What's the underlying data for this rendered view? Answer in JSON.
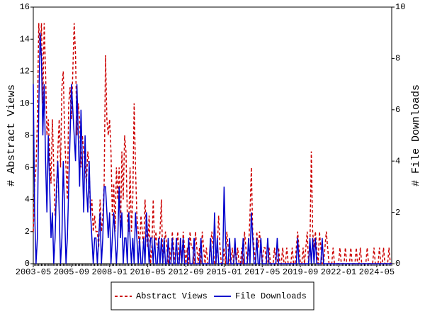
{
  "chart_data": {
    "type": "line",
    "y_label": "# Abstract Views",
    "y2_label": "# File Downloads",
    "categories": [
      "2003-05",
      null,
      null,
      null,
      null,
      null,
      null,
      null,
      null,
      null,
      null,
      null,
      null,
      null,
      null,
      null,
      null,
      null,
      null,
      null,
      null,
      null,
      null,
      null,
      null,
      null,
      null,
      null,
      "2005-09",
      null,
      null,
      null,
      null,
      null,
      null,
      null,
      null,
      null,
      null,
      null,
      null,
      null,
      null,
      null,
      null,
      null,
      null,
      null,
      null,
      null,
      null,
      null,
      null,
      null,
      null,
      null,
      "2008-01",
      null,
      null,
      null,
      null,
      null,
      null,
      null,
      null,
      null,
      null,
      null,
      null,
      null,
      null,
      null,
      null,
      null,
      null,
      null,
      null,
      null,
      null,
      null,
      null,
      null,
      null,
      null,
      "2010-05",
      null,
      null,
      null,
      null,
      null,
      null,
      null,
      null,
      null,
      null,
      null,
      null,
      null,
      null,
      null,
      null,
      null,
      null,
      null,
      null,
      null,
      null,
      null,
      null,
      null,
      null,
      null,
      "2012-09",
      null,
      null,
      null,
      null,
      null,
      null,
      null,
      null,
      null,
      null,
      null,
      null,
      null,
      null,
      null,
      null,
      null,
      null,
      null,
      null,
      null,
      null,
      null,
      null,
      null,
      null,
      null,
      "2015-01",
      null,
      null,
      null,
      null,
      null,
      null,
      null,
      null,
      null,
      null,
      null,
      null,
      null,
      null,
      null,
      null,
      null,
      null,
      null,
      null,
      null,
      null,
      null,
      null,
      null,
      null,
      null,
      "2017-05",
      null,
      null,
      null,
      null,
      null,
      null,
      null,
      null,
      null,
      null,
      null,
      null,
      null,
      null,
      null,
      null,
      null,
      null,
      null,
      null,
      null,
      null,
      null,
      null,
      null,
      null,
      null,
      "2019-09",
      null,
      null,
      null,
      null,
      null,
      null,
      null,
      null,
      null,
      null,
      null,
      null,
      null,
      null,
      null,
      null,
      null,
      null,
      null,
      null,
      null,
      null,
      null,
      null,
      null,
      null,
      null,
      "2022-01",
      null,
      null,
      null,
      null,
      null,
      null,
      null,
      null,
      null,
      null,
      null,
      null,
      null,
      null,
      null,
      null,
      null,
      null,
      null,
      null,
      null,
      null,
      null,
      null,
      null,
      null,
      null,
      "2024-05",
      null,
      null,
      null,
      null,
      null,
      null,
      null,
      null,
      null,
      null,
      null
    ],
    "series": [
      {
        "name": "Abstract Views",
        "color": "#cc0000",
        "dash": true,
        "values": [
          2,
          5,
          6,
          9,
          15,
          13,
          15,
          10,
          15,
          12,
          8,
          9,
          7,
          5,
          9,
          6,
          3,
          4,
          7,
          9,
          6,
          11,
          12,
          8,
          6,
          4,
          10,
          11,
          9,
          12,
          15,
          13,
          8,
          10,
          9,
          6,
          8,
          7,
          6,
          5,
          7,
          6,
          3,
          4,
          2,
          3,
          2,
          2,
          1,
          4,
          2,
          3,
          5,
          13,
          9,
          8,
          9,
          7,
          3,
          5,
          2,
          6,
          4,
          6,
          2,
          7,
          4,
          8,
          7,
          3,
          2,
          6,
          2,
          4,
          10,
          6,
          3,
          2,
          1,
          3,
          2,
          1,
          4,
          2,
          1,
          3,
          0,
          1,
          4,
          1,
          2,
          1,
          1,
          2,
          4,
          0,
          1,
          2,
          1,
          0,
          1,
          0,
          2,
          1,
          0,
          1,
          2,
          0,
          1,
          0,
          2,
          1,
          0,
          1,
          0,
          2,
          1,
          1,
          0,
          2,
          1,
          0,
          1,
          0,
          2,
          1,
          0,
          1,
          0,
          0,
          1,
          2,
          1,
          0,
          0,
          1,
          3,
          1,
          0,
          0,
          1,
          0,
          2,
          1,
          0,
          0,
          1,
          0,
          1,
          0,
          1,
          0,
          0,
          1,
          0,
          2,
          1,
          0,
          1,
          3,
          6,
          2,
          1,
          0,
          2,
          1,
          2,
          1,
          0,
          1,
          1,
          0,
          0,
          1,
          0,
          0,
          0,
          1,
          0,
          0,
          1,
          0,
          0,
          1,
          0,
          0,
          1,
          0,
          0,
          0,
          1,
          0,
          0,
          1,
          2,
          1,
          0,
          0,
          1,
          0,
          1,
          2,
          0,
          1,
          7,
          2,
          1,
          2,
          1,
          0,
          2,
          1,
          0,
          0,
          1,
          2,
          1,
          0,
          0,
          0,
          1,
          0,
          0,
          0,
          0,
          1,
          0,
          0,
          0,
          1,
          0,
          0,
          0,
          1,
          0,
          0,
          0,
          1,
          0,
          0,
          1,
          0,
          0,
          0,
          0,
          1,
          0,
          0,
          0,
          0,
          1,
          0,
          0,
          0,
          1,
          0,
          0,
          1,
          0,
          0,
          0,
          1,
          0,
          0
        ]
      },
      {
        "name": "File Downloads",
        "color": "#0000cc",
        "axis": "y2",
        "values": [
          7,
          2,
          0,
          1,
          6,
          9,
          8,
          5,
          7,
          4,
          2,
          5,
          3,
          1,
          2,
          0,
          1,
          3,
          4,
          2,
          0,
          1,
          4,
          2,
          0,
          1,
          3,
          5,
          7,
          6,
          5,
          4,
          7,
          5,
          3,
          6,
          4,
          2,
          5,
          3,
          2,
          4,
          2,
          1,
          0,
          1,
          1,
          0,
          1,
          2,
          0,
          1,
          3,
          3,
          2,
          1,
          2,
          0,
          1,
          2,
          1,
          0,
          1,
          3,
          1,
          2,
          0,
          1,
          1,
          0,
          2,
          1,
          0,
          1,
          0,
          2,
          1,
          0,
          1,
          0,
          0,
          1,
          0,
          2,
          1,
          0,
          1,
          1,
          0,
          1,
          0,
          0,
          1,
          0,
          1,
          0,
          1,
          0,
          0,
          1,
          0,
          0,
          1,
          0,
          0,
          1,
          0,
          0,
          1,
          0,
          1,
          0,
          0,
          0,
          1,
          0,
          0,
          0,
          1,
          0,
          0,
          0,
          0,
          1,
          0,
          0,
          0,
          0,
          0,
          0,
          1,
          0,
          0,
          2,
          0,
          1,
          0,
          0,
          0,
          0,
          3,
          1,
          0,
          0,
          1,
          0,
          0,
          0,
          1,
          0,
          0,
          0,
          0,
          0,
          1,
          0,
          0,
          0,
          1,
          0,
          2,
          1,
          0,
          0,
          1,
          0,
          0,
          1,
          0,
          0,
          0,
          0,
          1,
          0,
          0,
          0,
          0,
          0,
          0,
          1,
          0,
          0,
          0,
          0,
          0,
          0,
          0,
          0,
          0,
          0,
          0,
          0,
          0,
          0,
          1,
          0,
          0,
          0,
          0,
          0,
          0,
          0,
          0,
          1,
          0,
          1,
          0,
          1,
          0,
          0,
          0,
          0,
          1,
          0,
          0,
          0,
          0,
          0,
          0,
          0,
          0,
          0,
          0,
          0,
          0,
          0,
          0,
          0,
          0,
          0,
          0,
          0,
          0,
          0,
          0,
          0,
          0,
          0,
          0,
          0,
          0,
          0,
          0,
          0,
          0,
          0,
          0,
          0,
          0,
          0,
          0,
          0,
          0,
          0,
          0,
          0,
          0,
          0,
          0,
          0,
          0,
          0,
          0,
          0
        ]
      }
    ],
    "ylim": [
      0,
      16
    ],
    "yticks": [
      0,
      2,
      4,
      6,
      8,
      10,
      12,
      14,
      16
    ],
    "y2lim": [
      0,
      10
    ],
    "y2ticks": [
      0,
      2,
      4,
      6,
      8,
      10
    ],
    "legend": "bottom"
  }
}
